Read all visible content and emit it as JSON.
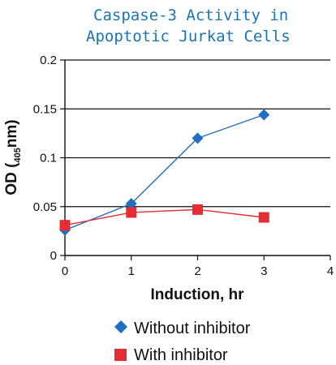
{
  "chart_data": {
    "type": "line",
    "title_lines": [
      "Caspase-3 Activity in",
      "Apoptotic Jurkat Cells"
    ],
    "xlabel": "Induction, hr",
    "ylabel": {
      "main": "OD (",
      "subscript": "405",
      "suffix": "nm)"
    },
    "x_ticks": [
      0,
      1,
      2,
      3,
      4
    ],
    "y_ticks": [
      "0",
      "0.05",
      "0.1",
      "0.15",
      "0.2"
    ],
    "y_tick_values": [
      0,
      0.05,
      0.1,
      0.15,
      0.2
    ],
    "xlim": [
      0,
      4
    ],
    "ylim": [
      0,
      0.2
    ],
    "grid": "horizontal",
    "legend_position": "bottom",
    "series": [
      {
        "name": "Without inhibitor",
        "color": "#1f6fc0",
        "marker": "diamond",
        "x": [
          0,
          1,
          2,
          3
        ],
        "y": [
          0.026,
          0.053,
          0.12,
          0.144
        ]
      },
      {
        "name": "With inhibitor",
        "color": "#e52e33",
        "marker": "square",
        "x": [
          0,
          1,
          2,
          3
        ],
        "y": [
          0.031,
          0.044,
          0.047,
          0.039
        ]
      }
    ]
  }
}
